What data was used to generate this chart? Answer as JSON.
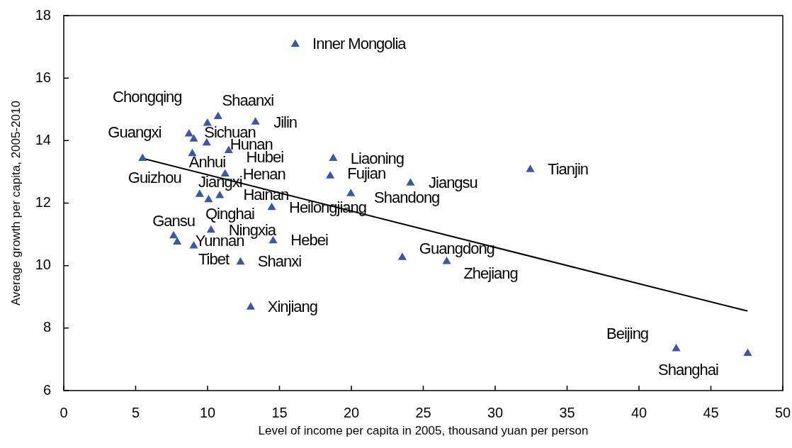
{
  "chart_data": {
    "type": "scatter",
    "xlabel": "Level of income per capita in 2005, thousand yuan per person",
    "ylabel": "Average growth per capita, 2005-2010",
    "xlim": [
      0,
      50
    ],
    "xticks": [
      0,
      5,
      10,
      15,
      20,
      25,
      30,
      35,
      40,
      45,
      50
    ],
    "ylim": [
      6,
      18
    ],
    "yticks": [
      6,
      8,
      10,
      12,
      14,
      16,
      18
    ],
    "marker": "triangle",
    "series": [
      {
        "color": "#3b56a6",
        "x": [
          16.1,
          10.73,
          9.99,
          13.33,
          8.71,
          9.04,
          9.94,
          11.47,
          8.94,
          11.22,
          9.45,
          10.07,
          10.85,
          14.46,
          5.48,
          10.24,
          7.64,
          7.89,
          9.04,
          14.56,
          12.29,
          13.0,
          18.74,
          18.53,
          24.11,
          19.96,
          32.44,
          23.54,
          26.63,
          42.59,
          47.56
        ],
        "values": [
          17.08,
          14.77,
          14.55,
          14.59,
          14.21,
          14.05,
          13.92,
          13.68,
          13.58,
          12.93,
          12.28,
          12.11,
          12.24,
          11.86,
          13.43,
          11.13,
          10.95,
          10.75,
          10.63,
          10.79,
          10.11,
          8.67,
          13.43,
          12.87,
          12.64,
          12.3,
          13.07,
          10.26,
          10.13,
          7.34,
          7.19
        ]
      },
      {
        "type": "line",
        "color": "#000000",
        "marker": "none",
        "x": [
          5.5,
          47.5
        ],
        "values": [
          13.43,
          8.55
        ]
      }
    ],
    "annotations": [
      {
        "text": "Inner Mongolia",
        "x": 16.1,
        "y": 17.08
      },
      {
        "text": "Shaanxi",
        "x": 10.73,
        "y": 14.77
      },
      {
        "text": "Chongqing",
        "x": 9.99,
        "y": 14.55
      },
      {
        "text": "Jilin",
        "x": 13.33,
        "y": 14.59
      },
      {
        "text": "Guangxi",
        "x": 8.71,
        "y": 14.21
      },
      {
        "text": "Sichuan",
        "x": 9.04,
        "y": 14.05
      },
      {
        "text": "Hunan",
        "x": 9.94,
        "y": 13.92
      },
      {
        "text": "Hubei",
        "x": 11.47,
        "y": 13.68
      },
      {
        "text": "Anhui",
        "x": 8.94,
        "y": 13.58
      },
      {
        "text": "Henan",
        "x": 11.22,
        "y": 12.93
      },
      {
        "text": "Jiangxi",
        "x": 9.45,
        "y": 12.28
      },
      {
        "text": "Qinghai",
        "x": 10.07,
        "y": 12.11
      },
      {
        "text": "Hainan",
        "x": 10.85,
        "y": 12.24
      },
      {
        "text": "Heilongjiang",
        "x": 14.46,
        "y": 11.86
      },
      {
        "text": "Guizhou",
        "x": 5.48,
        "y": 13.43
      },
      {
        "text": "Ningxia",
        "x": 10.24,
        "y": 11.13
      },
      {
        "text": "Gansu",
        "x": 7.64,
        "y": 10.95
      },
      {
        "text": "Yunnan",
        "x": 7.89,
        "y": 10.75
      },
      {
        "text": "Tibet",
        "x": 9.04,
        "y": 10.63
      },
      {
        "text": "Hebei",
        "x": 14.56,
        "y": 10.79
      },
      {
        "text": "Shanxi",
        "x": 12.29,
        "y": 10.11
      },
      {
        "text": "Xinjiang",
        "x": 13.0,
        "y": 8.67
      },
      {
        "text": "Liaoning",
        "x": 18.74,
        "y": 13.43
      },
      {
        "text": "Fujian",
        "x": 18.53,
        "y": 12.87
      },
      {
        "text": "Jiangsu",
        "x": 24.11,
        "y": 12.64
      },
      {
        "text": "Shandong",
        "x": 19.96,
        "y": 12.3
      },
      {
        "text": "Tianjin",
        "x": 32.44,
        "y": 13.07
      },
      {
        "text": "Guangdong",
        "x": 23.54,
        "y": 10.26
      },
      {
        "text": "Zhejiang",
        "x": 26.63,
        "y": 10.13
      },
      {
        "text": "Beijing",
        "x": 42.59,
        "y": 7.34
      },
      {
        "text": "Shanghai",
        "x": 47.56,
        "y": 7.19
      }
    ]
  }
}
